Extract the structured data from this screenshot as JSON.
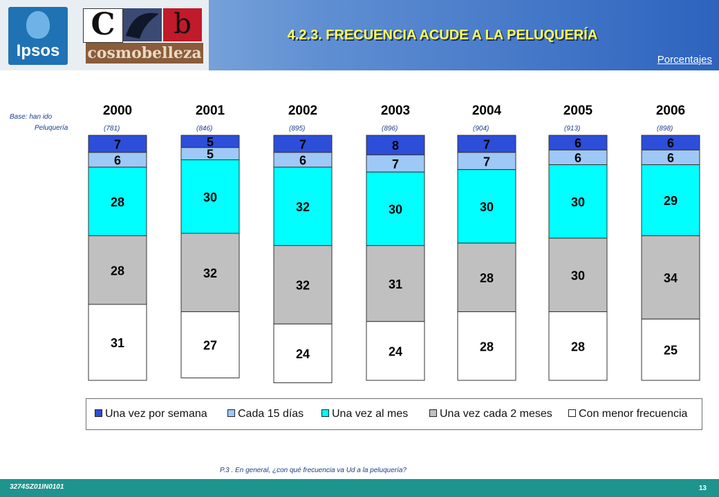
{
  "header": {
    "title": "4.2.3. FRECUENCIA ACUDE A LA PELUQUERÍA",
    "units": "Porcentajes",
    "logo_ipsos": "Ipsos",
    "logo_cb_c": "C",
    "logo_cb_b": "b",
    "logo_cosmo": "cosmobelleza"
  },
  "base": {
    "label": "Base:  han ido",
    "label2": "Peluquería"
  },
  "chart_data": {
    "type": "bar",
    "stacked": true,
    "categories": [
      "2000",
      "2001",
      "2002",
      "2003",
      "2004",
      "2005",
      "2006"
    ],
    "bases": [
      "(781)",
      "(846)",
      "(895)",
      "(896)",
      "(904)",
      "(913)",
      "(898)"
    ],
    "series": [
      {
        "name": "Una vez por semana",
        "color": "#2d4ed8",
        "values": [
          7,
          5,
          7,
          8,
          7,
          6,
          6
        ]
      },
      {
        "name": "Cada 15 días",
        "color": "#9ec8f6",
        "values": [
          6,
          5,
          6,
          7,
          7,
          6,
          6
        ]
      },
      {
        "name": "Una vez al mes",
        "color": "#00ffff",
        "values": [
          28,
          30,
          32,
          30,
          30,
          30,
          29
        ]
      },
      {
        "name": "Una vez cada 2 meses",
        "color": "#c0c0c0",
        "values": [
          28,
          32,
          32,
          31,
          28,
          30,
          34
        ]
      },
      {
        "name": "Con menor frecuencia",
        "color": "#ffffff",
        "values": [
          31,
          27,
          24,
          24,
          28,
          28,
          25
        ]
      }
    ],
    "legend_position": "bottom",
    "grid": false
  },
  "question": "P.3 .    En general,  ¿con qué frecuencia va Ud a la peluquería?",
  "footer": {
    "code": "3274SZ01IN0101",
    "page": "13"
  }
}
